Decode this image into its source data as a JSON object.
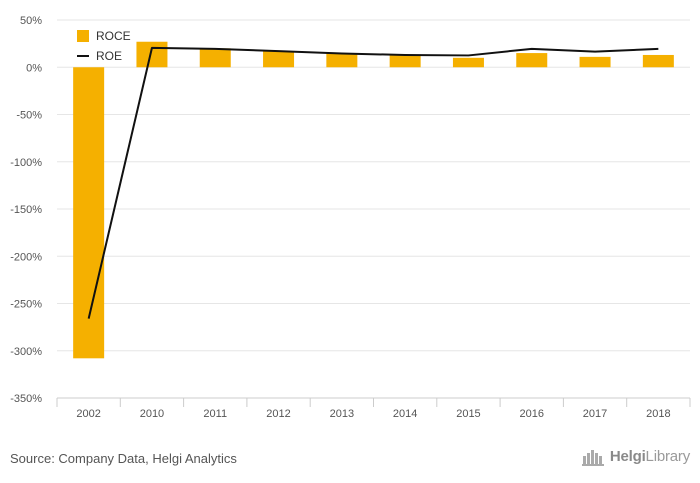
{
  "chart_data": {
    "type": "bar",
    "categories": [
      "2002",
      "2010",
      "2011",
      "2012",
      "2013",
      "2014",
      "2015",
      "2016",
      "2017",
      "2018"
    ],
    "series": [
      {
        "name": "ROCE",
        "type": "bar",
        "color": "#f5b000",
        "values": [
          -308,
          27,
          20,
          17,
          15,
          13,
          10,
          15,
          11,
          13
        ]
      },
      {
        "name": "ROE",
        "type": "line",
        "color": "#111111",
        "values": [
          -266,
          20.5,
          19.5,
          17,
          14.5,
          13,
          12.5,
          19.5,
          16.5,
          19.5
        ]
      }
    ],
    "yticks": [
      50,
      0,
      -50,
      -100,
      -150,
      -200,
      -250,
      -300,
      -350
    ],
    "ytick_labels": [
      "50%",
      "0%",
      "-50%",
      "-100%",
      "-150%",
      "-200%",
      "-250%",
      "-300%",
      "-350%"
    ],
    "ylim": [
      -350,
      50
    ],
    "grid": true,
    "legend_position": "top-left"
  },
  "footer": {
    "source": "Source: Company Data, Helgi Analytics",
    "brand_bold": "Helgi",
    "brand_rest": "Library"
  },
  "logo_icon": "helgi-library-logo-icon"
}
